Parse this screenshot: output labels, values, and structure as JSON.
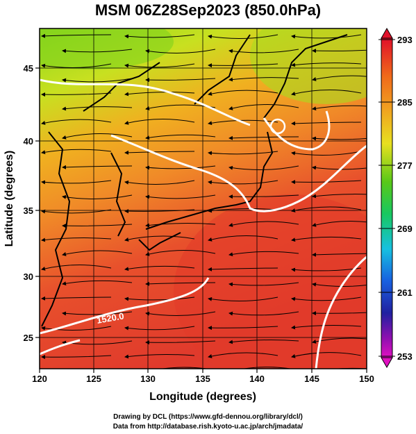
{
  "title": "MSM 06Z28Sep2023 (850.0hPa)",
  "x_axis": {
    "label": "Longitude (degrees)",
    "ticks": [
      "120",
      "125",
      "130",
      "135",
      "140",
      "145",
      "150"
    ]
  },
  "y_axis": {
    "label": "Latitude  (degrees)",
    "ticks": [
      "45",
      "40",
      "35",
      "30",
      "25"
    ]
  },
  "colorbar": {
    "ticks": [
      "293",
      "285",
      "277",
      "269",
      "261",
      "253"
    ],
    "colors": [
      "#e0102a",
      "#f06a1a",
      "#f0a020",
      "#e8e020",
      "#58c818",
      "#18c860",
      "#18c0e0",
      "#1860e0",
      "#2020a0",
      "#9010b0",
      "#e010c0"
    ]
  },
  "contour_labels": [
    "1520.0"
  ],
  "credits": {
    "line1": "Drawing by DCL (https://www.gfd-dennou.org/library/dcl/)",
    "line2": "Data from http://database.rish.kyoto-u.ac.jp/arch/jmadata/"
  },
  "colors": {
    "warm": "#e8402a",
    "mid": "#f5a020",
    "cool": "#9ad820",
    "contour": "#ffffff",
    "coast": "#000000"
  },
  "map_data": {
    "variable": "temperature (K) with wind streamlines and geopotential height contours",
    "level": "850.0hPa",
    "lon_range": [
      120,
      150
    ],
    "lat_range": [
      22.5,
      47.6
    ],
    "color_range_K": [
      253,
      293
    ]
  }
}
